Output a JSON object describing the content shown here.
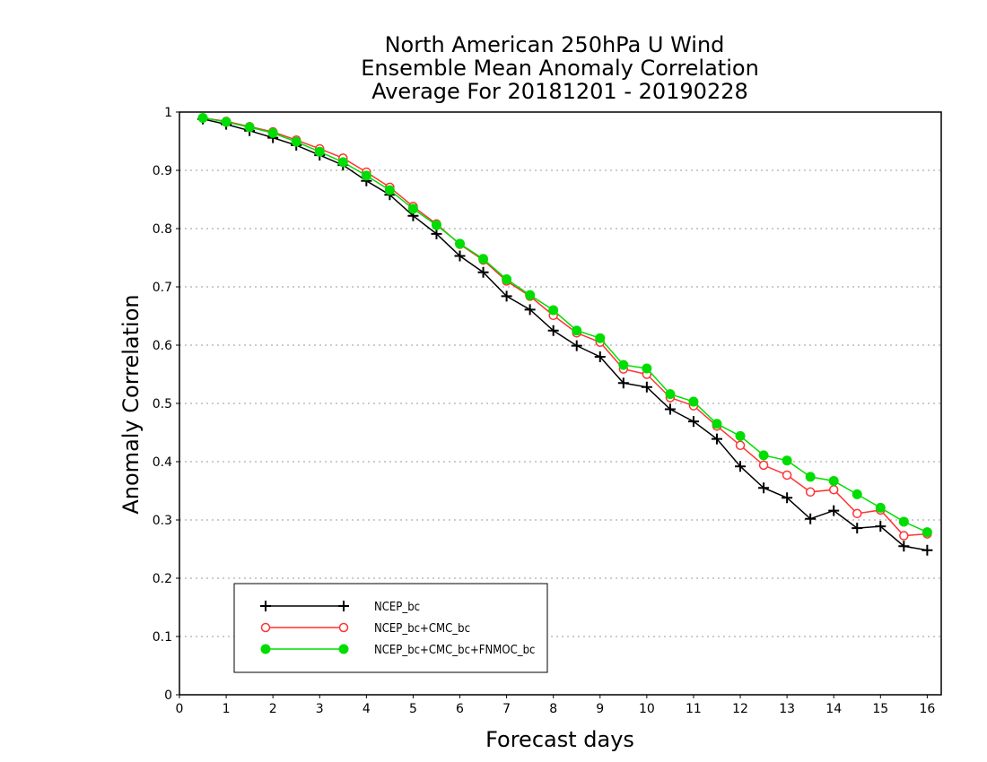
{
  "chart_data": {
    "type": "line",
    "title_lines": [
      "North American 250hPa U Wind",
      "Ensemble Mean Anomaly Correlation",
      "Average For 20181201 - 20190228"
    ],
    "xlabel": "Forecast days",
    "ylabel": "Anomaly Correlation",
    "xlim": [
      0,
      16.3
    ],
    "ylim": [
      0,
      1
    ],
    "xticks": [
      0,
      1,
      2,
      3,
      4,
      5,
      6,
      7,
      8,
      9,
      10,
      11,
      12,
      13,
      14,
      15,
      16
    ],
    "yticks": [
      0,
      0.1,
      0.2,
      0.3,
      0.4,
      0.5,
      0.6,
      0.7,
      0.8,
      0.9,
      1
    ],
    "ytick_labels": [
      "0",
      "0.1",
      "0.2",
      "0.3",
      "0.4",
      "0.5",
      "0.6",
      "0.7",
      "0.8",
      "0.9",
      "1"
    ],
    "grid": "horizontal dotted",
    "legend_position": "bottom-left",
    "x": [
      0.5,
      1,
      1.5,
      2,
      2.5,
      3,
      3.5,
      4,
      4.5,
      5,
      5.5,
      6,
      6.5,
      7,
      7.5,
      8,
      8.5,
      9,
      9.5,
      10,
      10.5,
      11,
      11.5,
      12,
      12.5,
      13,
      13.5,
      14,
      14.5,
      15,
      15.5,
      16
    ],
    "series": [
      {
        "name": "NCEP_bc",
        "color": "#000000",
        "marker": "plus",
        "values": [
          0.988,
          0.979,
          0.968,
          0.956,
          0.943,
          0.926,
          0.909,
          0.882,
          0.858,
          0.822,
          0.791,
          0.753,
          0.725,
          0.684,
          0.661,
          0.625,
          0.599,
          0.58,
          0.535,
          0.528,
          0.49,
          0.469,
          0.439,
          0.392,
          0.355,
          0.338,
          0.302,
          0.316,
          0.286,
          0.289,
          0.255,
          0.248
        ]
      },
      {
        "name": "NCEP_bc+CMC_bc",
        "color": "#ff3333",
        "marker": "open-circle",
        "values": [
          0.99,
          0.984,
          0.975,
          0.966,
          0.952,
          0.937,
          0.921,
          0.897,
          0.871,
          0.838,
          0.808,
          0.773,
          0.746,
          0.71,
          0.684,
          0.651,
          0.621,
          0.605,
          0.559,
          0.55,
          0.51,
          0.496,
          0.461,
          0.428,
          0.394,
          0.377,
          0.348,
          0.352,
          0.311,
          0.317,
          0.273,
          0.276
        ]
      },
      {
        "name": "NCEP_bc+CMC_bc+FNMOC_bc",
        "color": "#00dd00",
        "marker": "filled-circle",
        "values": [
          0.99,
          0.983,
          0.974,
          0.964,
          0.949,
          0.932,
          0.914,
          0.891,
          0.866,
          0.834,
          0.806,
          0.774,
          0.748,
          0.713,
          0.686,
          0.66,
          0.625,
          0.612,
          0.566,
          0.56,
          0.516,
          0.503,
          0.465,
          0.444,
          0.411,
          0.402,
          0.374,
          0.367,
          0.344,
          0.321,
          0.297,
          0.279
        ]
      }
    ]
  }
}
